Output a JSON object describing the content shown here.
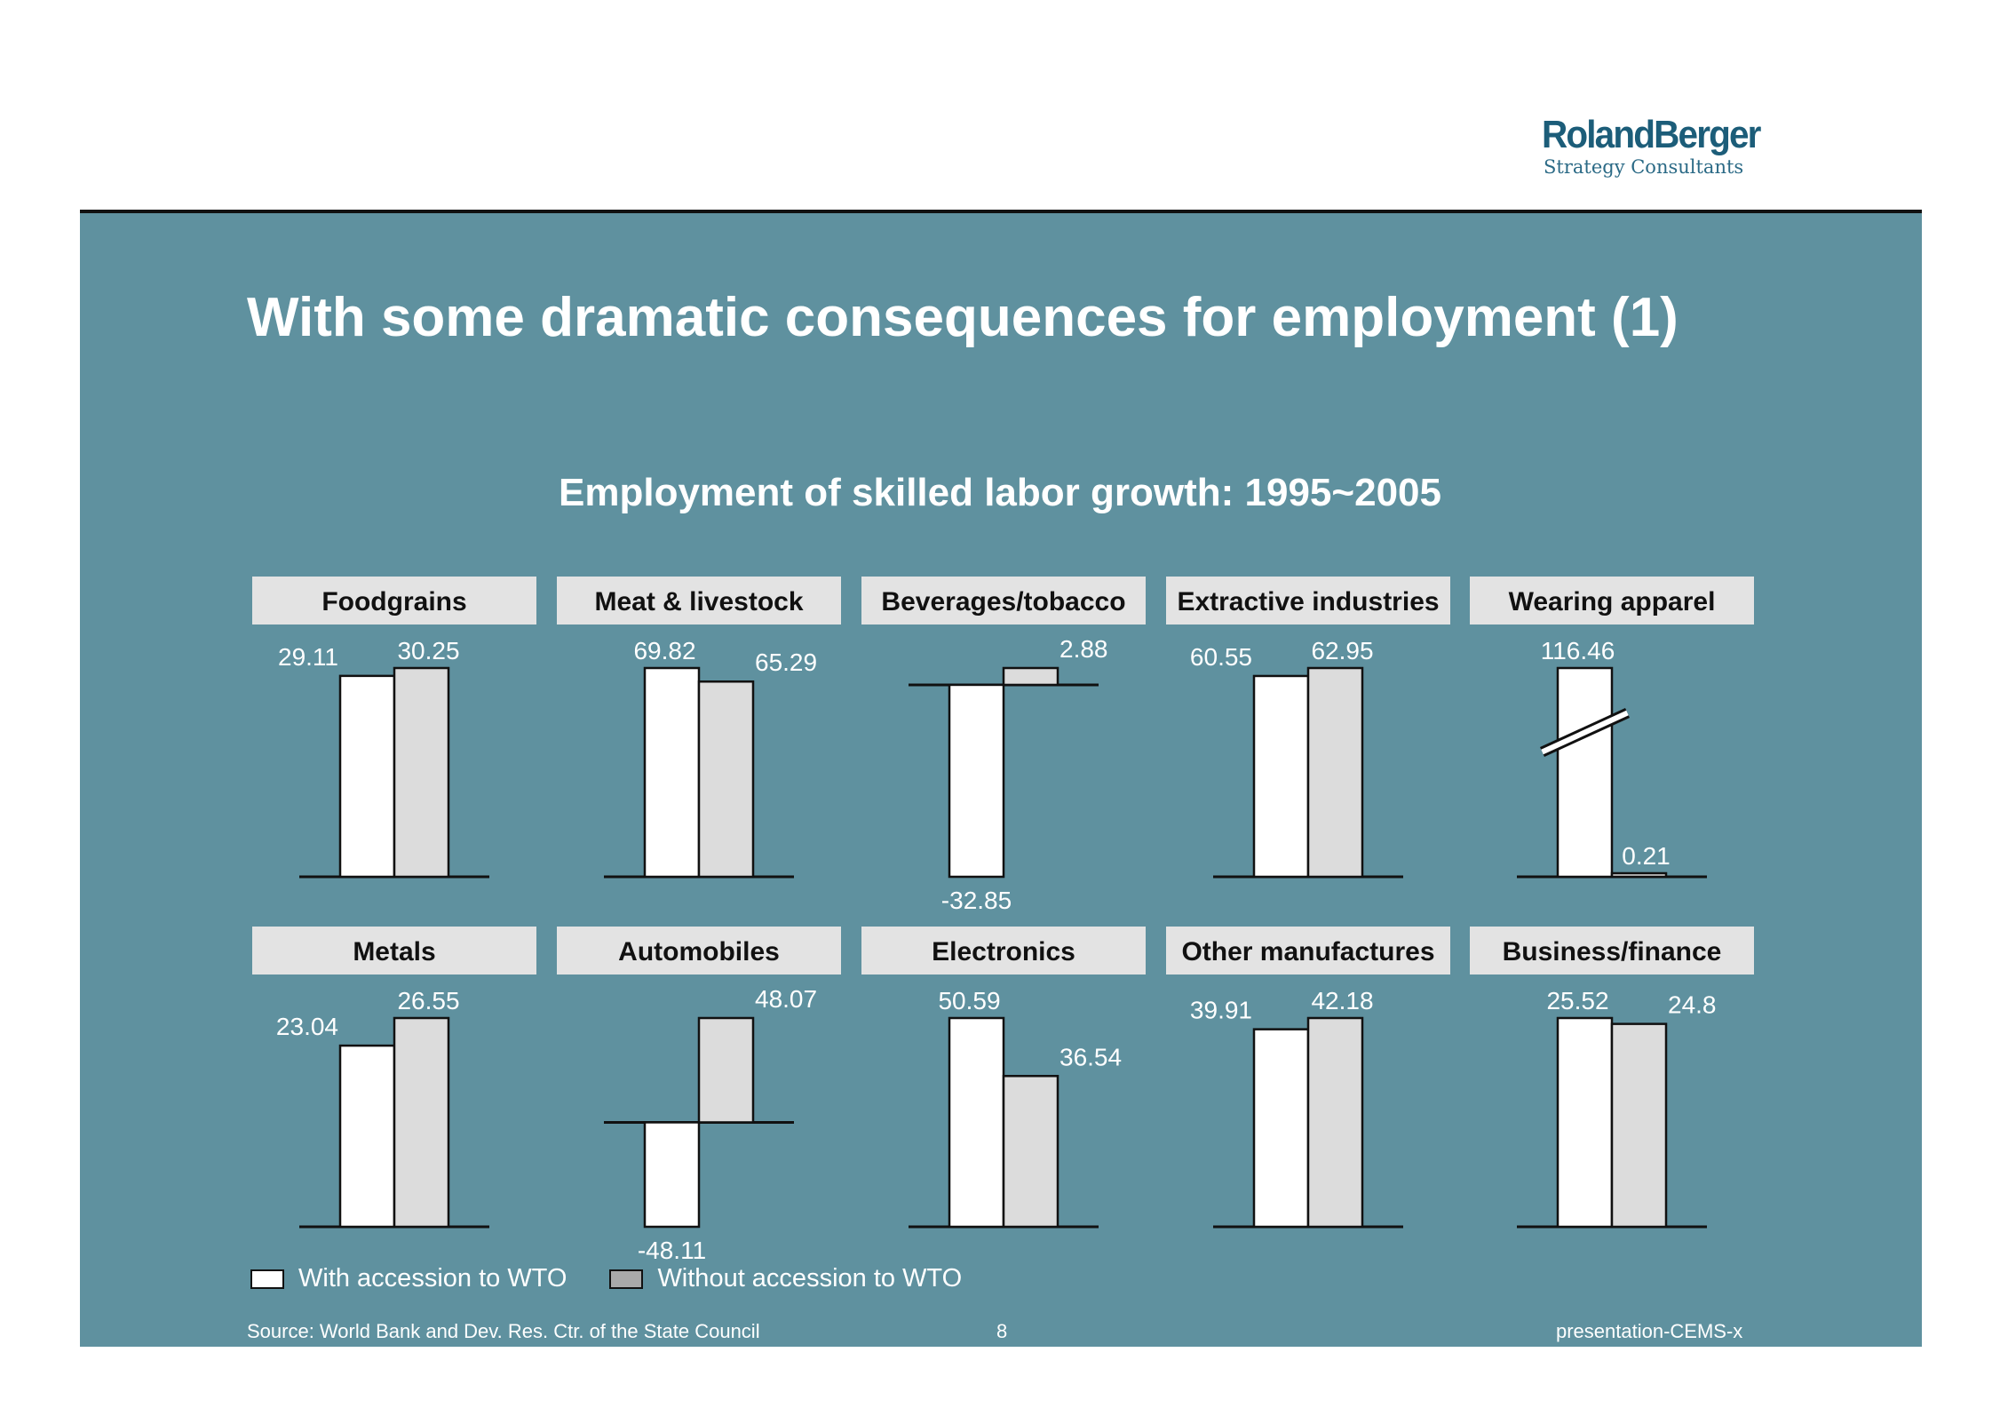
{
  "logo": {
    "main": "RolandBerger",
    "sub": "Strategy Consultants"
  },
  "title": "With some dramatic consequences for employment (1)",
  "footer": {
    "source": "Source: World Bank and Dev. Res. Ctr. of the State Council",
    "page": "8",
    "doc": "presentation-CEMS-x"
  },
  "colors": {
    "panel": "#5f919f",
    "with": "#ffffff",
    "without": "#dcdcdc",
    "header_box": "#e3e3e3"
  },
  "chart_data": {
    "type": "bar",
    "title": "Employment of skilled labor growth: 1995~2005",
    "legend": {
      "position": "bottom-left",
      "entries": [
        {
          "label": "With  accession to WTO",
          "color": "#ffffff"
        },
        {
          "label": "Without  accession to WTO",
          "color": "#a9a9a9"
        }
      ]
    },
    "series_order": [
      "With accession to WTO",
      "Without accession to WTO"
    ],
    "panels": [
      {
        "category": "Foodgrains",
        "values": [
          29.11,
          30.25
        ]
      },
      {
        "category": "Meat & livestock",
        "values": [
          69.82,
          65.29
        ]
      },
      {
        "category": "Beverages/tobacco",
        "values": [
          -32.85,
          2.88
        ]
      },
      {
        "category": "Extractive industries",
        "values": [
          60.55,
          62.95
        ]
      },
      {
        "category": "Wearing apparel",
        "values": [
          116.46,
          0.21
        ],
        "axis_break": true
      },
      {
        "category": "Metals",
        "values": [
          23.04,
          26.55
        ]
      },
      {
        "category": "Automobiles",
        "values": [
          -48.11,
          48.07
        ]
      },
      {
        "category": "Electronics",
        "values": [
          50.59,
          36.54
        ]
      },
      {
        "category": "Other manufactures",
        "values": [
          39.91,
          42.18
        ]
      },
      {
        "category": "Business/finance",
        "values": [
          25.52,
          24.8
        ]
      }
    ]
  }
}
